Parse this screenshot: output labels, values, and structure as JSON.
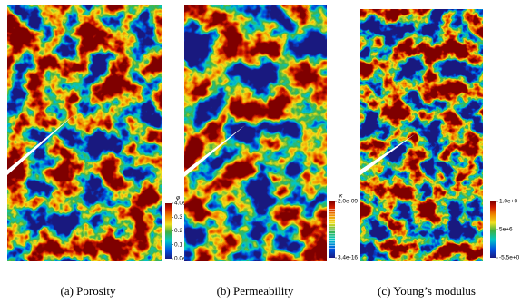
{
  "panels": [
    {
      "caption": "(a) Porosity",
      "colorbar": {
        "title": "φ",
        "labels": [
          "4.0e-01",
          "0.3",
          "0.2",
          "0.1",
          "0.0e+00"
        ]
      }
    },
    {
      "caption": "(b) Permeability",
      "colorbar": {
        "title": "κ",
        "labels": [
          "2.0e-09",
          "3.4e-16"
        ]
      }
    },
    {
      "caption": "(c) Young’s modulus",
      "colorbar": {
        "labels": [
          "1.0e+0",
          "5e+6",
          "-5.5e+0"
        ]
      }
    }
  ]
}
